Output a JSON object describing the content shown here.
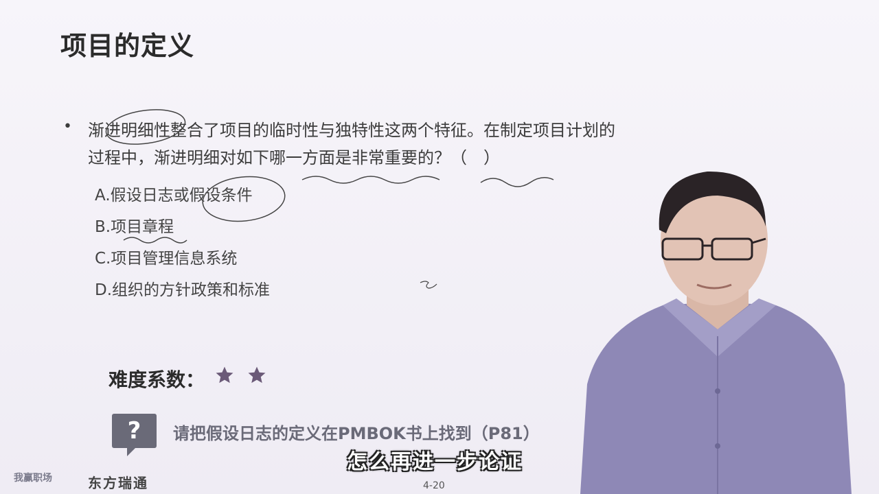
{
  "slide": {
    "title": "项目的定义",
    "bullet": "•",
    "question": "渐进明细性整合了项目的临时性与独特性这两个特征。在制定项目计划的过程中，渐进明细对如下哪一方面是非常重要的？（　）",
    "options": [
      "A.假设日志或假设条件",
      "B.项目章程",
      "C.项目管理信息系统",
      "D.组织的方针政策和标准"
    ],
    "difficulty_label": "难度系数：",
    "difficulty_stars": 2,
    "hint_icon": "?",
    "hint_text": "请把假设日志的定义在PMBOK书上找到（P81）",
    "page_number": "4-20"
  },
  "video": {
    "subtitle": "怎么再进一步论证"
  },
  "branding": {
    "logo_left": "我赢职场",
    "logo_right": "东方瑞通"
  },
  "colors": {
    "background": "#f2eff6",
    "hint_gray": "#6a6a78",
    "shirt": "#8e88b6",
    "star": "#6b5a78"
  }
}
